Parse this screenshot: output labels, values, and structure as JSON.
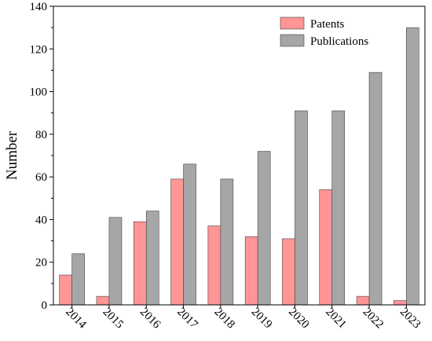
{
  "chart_data": {
    "type": "bar",
    "title": "",
    "xlabel": "",
    "ylabel": "Number",
    "categories": [
      "2014",
      "2015",
      "2016",
      "2017",
      "2018",
      "2019",
      "2020",
      "2021",
      "2022",
      "2023"
    ],
    "series": [
      {
        "name": "Patents",
        "color": "#ff9595",
        "values": [
          14,
          4,
          39,
          59,
          37,
          32,
          31,
          54,
          4,
          2
        ]
      },
      {
        "name": "Publications",
        "color": "#a6a6a6",
        "values": [
          24,
          41,
          44,
          66,
          59,
          72,
          91,
          91,
          109,
          130
        ]
      }
    ],
    "ylim": [
      0,
      140
    ],
    "yticks": [
      0,
      20,
      40,
      60,
      80,
      100,
      120,
      140
    ],
    "grid": false,
    "legend_position": "top-right"
  }
}
